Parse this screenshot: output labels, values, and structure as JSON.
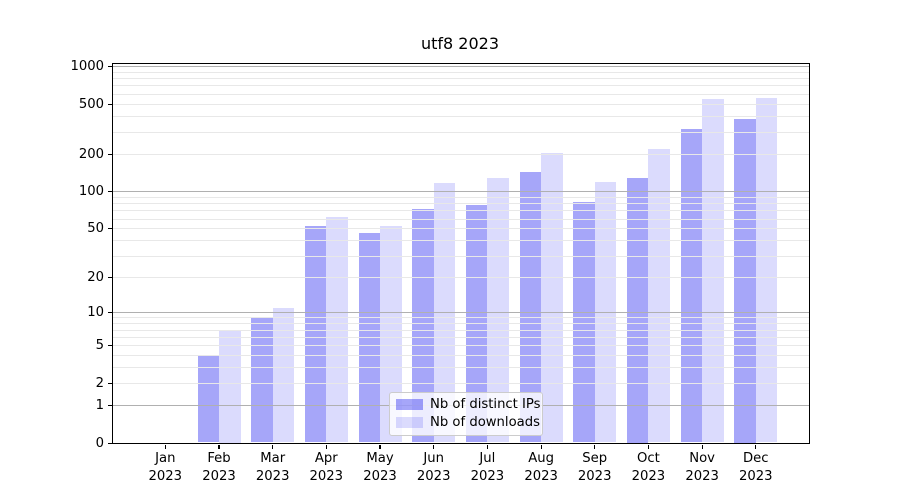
{
  "title": "utf8 2023",
  "colors": {
    "bar_distinct_ips": "rgba(0,0,238,0.35)",
    "bar_downloads": "rgba(0,0,238,0.14)",
    "grid_major": "#b0b0b0",
    "grid_minor": "#e8e8e8",
    "legend_border": "#cccccc",
    "axis": "#000000"
  },
  "chart_data": {
    "type": "bar",
    "title": "utf8 2023",
    "xlabel": "",
    "ylabel": "",
    "x_year": "2023",
    "categories": [
      "Jan",
      "Feb",
      "Mar",
      "Apr",
      "May",
      "Jun",
      "Jul",
      "Aug",
      "Sep",
      "Oct",
      "Nov",
      "Dec"
    ],
    "series": [
      {
        "name": "Nb of distinct IPs",
        "color": "rgba(0,0,238,0.35)",
        "values": [
          0,
          4,
          9,
          53,
          46,
          72,
          78,
          145,
          82,
          130,
          320,
          385
        ]
      },
      {
        "name": "Nb of downloads",
        "color": "rgba(0,0,238,0.14)",
        "values": [
          0,
          7,
          11,
          62,
          53,
          118,
          128,
          205,
          120,
          220,
          550,
          560
        ]
      }
    ],
    "yscale": "log1p",
    "yticks": [
      0,
      1,
      2,
      5,
      10,
      20,
      50,
      100,
      200,
      500,
      1000
    ],
    "ylim": [
      0,
      1050
    ],
    "grid": "on",
    "legend_position": "lower center"
  }
}
